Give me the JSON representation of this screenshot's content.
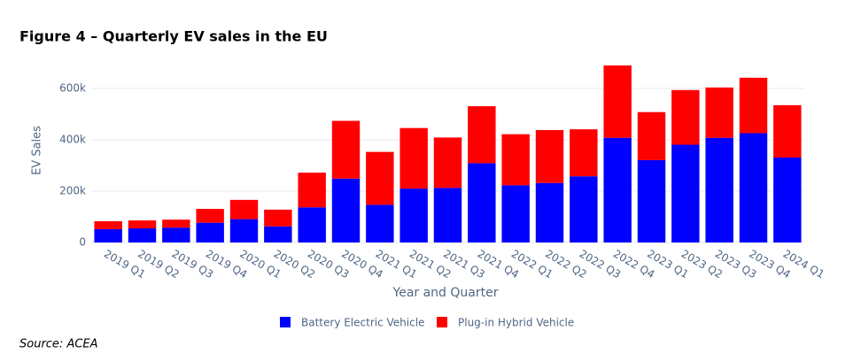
{
  "title": "Figure 4 – Quarterly EV sales in the EU",
  "source": "Source: ACEA",
  "chart_data": {
    "type": "bar",
    "stacked": true,
    "grid": true,
    "legend": "bottom",
    "x_label": "Year and Quarter",
    "y_label": "EV Sales",
    "categories": [
      "2019 Q1",
      "2019 Q2",
      "2019 Q3",
      "2019 Q4",
      "2020 Q1",
      "2020 Q2",
      "2020 Q3",
      "2020 Q4",
      "2021 Q1",
      "2021 Q2",
      "2021 Q3",
      "2021 Q4",
      "2022 Q1",
      "2022 Q2",
      "2022 Q3",
      "2022 Q4",
      "2023 Q1",
      "2023 Q2",
      "2023 Q3",
      "2023 Q4",
      "2024 Q1"
    ],
    "series": [
      {
        "name": "Battery Electric Vehicle",
        "color": "#0000ff",
        "values": [
          52000,
          55000,
          58000,
          77000,
          91000,
          63000,
          137000,
          249000,
          147000,
          210000,
          213000,
          309000,
          223000,
          232000,
          258000,
          408000,
          321000,
          381000,
          408000,
          426000,
          331000
        ]
      },
      {
        "name": "Plug-in Hybrid Vehicle",
        "color": "#ff0000",
        "values": [
          31000,
          31000,
          31000,
          54000,
          75000,
          65000,
          135000,
          225000,
          206000,
          236000,
          196000,
          222000,
          199000,
          206000,
          183000,
          282000,
          187000,
          213000,
          196000,
          216000,
          204000
        ]
      }
    ],
    "ylim": [
      0,
      700000
    ],
    "yticks": [
      0,
      {
        "value": 200000,
        "label": "200k"
      },
      {
        "value": 400000,
        "label": "400k"
      },
      {
        "value": 600000,
        "label": "600k"
      }
    ]
  }
}
